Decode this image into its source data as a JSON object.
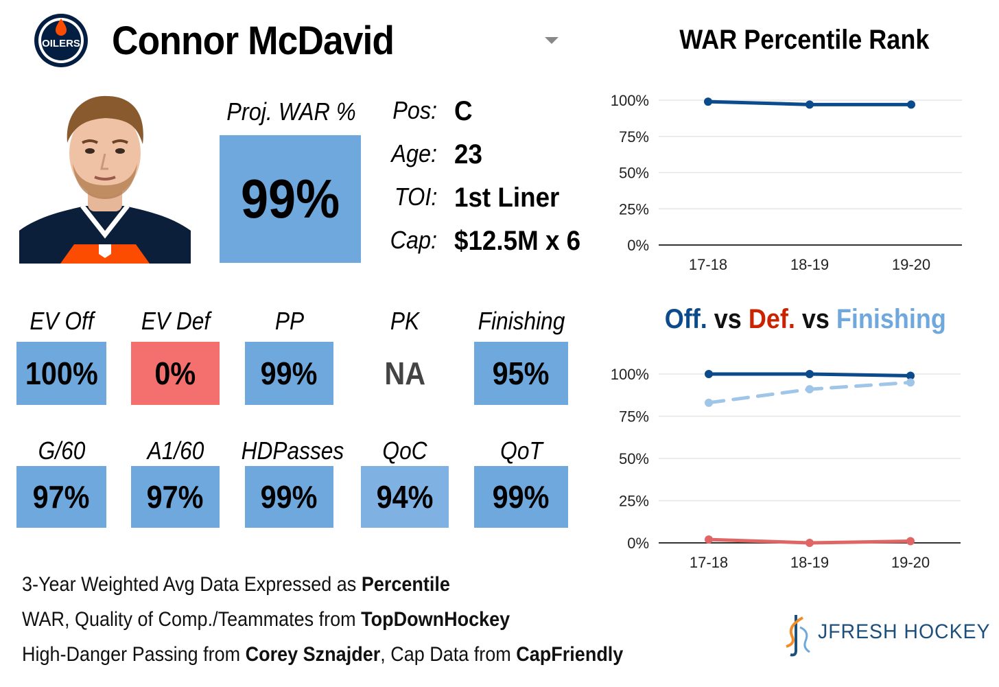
{
  "player": {
    "name": "Connor McDavid",
    "team_logo_text": "OILERS"
  },
  "projected": {
    "label": "Proj. WAR %",
    "value": "99%"
  },
  "info": [
    {
      "label": "Pos:",
      "value": "C"
    },
    {
      "label": "Age:",
      "value": "23"
    },
    {
      "label": "TOI:",
      "value": "1st Liner"
    },
    {
      "label": "Cap:",
      "value": "$12.5M x 6"
    }
  ],
  "stats_row1": [
    {
      "label": "EV Off",
      "value": "100%",
      "style": "blue"
    },
    {
      "label": "EV Def",
      "value": "0%",
      "style": "red"
    },
    {
      "label": "PP",
      "value": "99%",
      "style": "blue"
    },
    {
      "label": "PK",
      "value": "NA",
      "style": "none"
    },
    {
      "label": "Finishing",
      "value": "95%",
      "style": "blue"
    }
  ],
  "stats_row2": [
    {
      "label": "G/60",
      "value": "97%",
      "style": "blue"
    },
    {
      "label": "A1/60",
      "value": "97%",
      "style": "blue"
    },
    {
      "label": "HDPasses",
      "value": "99%",
      "style": "blue"
    },
    {
      "label": "QoC",
      "value": "94%",
      "style": "lite"
    },
    {
      "label": "QoT",
      "value": "99%",
      "style": "blue"
    }
  ],
  "colors": {
    "high": "#6fa8dc",
    "low": "#f4706e",
    "offense": "#0b4a8b",
    "defense": "#e06666",
    "finishing": "#9fc5e8"
  },
  "chart_data": [
    {
      "type": "line",
      "title": "WAR Percentile Rank",
      "categories": [
        "17-18",
        "18-19",
        "19-20"
      ],
      "yticks": [
        "0%",
        "25%",
        "50%",
        "75%",
        "100%"
      ],
      "ylim": [
        0,
        100
      ],
      "series": [
        {
          "values": [
            99,
            97,
            97
          ],
          "color": "#0b4a8b",
          "dash": false
        }
      ]
    },
    {
      "type": "line",
      "title_parts": [
        {
          "text": "Off.",
          "color": "#0b4a8b"
        },
        {
          "text": " vs ",
          "color": "#111111"
        },
        {
          "text": "Def.",
          "color": "#cc2200"
        },
        {
          "text": " vs ",
          "color": "#111111"
        },
        {
          "text": "Finishing",
          "color": "#6fa8dc"
        }
      ],
      "categories": [
        "17-18",
        "18-19",
        "19-20"
      ],
      "yticks": [
        "0%",
        "25%",
        "50%",
        "75%",
        "100%"
      ],
      "ylim": [
        0,
        100
      ],
      "series": [
        {
          "values": [
            100,
            100,
            99
          ],
          "color": "#0b4a8b",
          "dash": false
        },
        {
          "values": [
            83,
            91,
            95
          ],
          "color": "#9fc5e8",
          "dash": true
        },
        {
          "values": [
            2,
            0,
            1
          ],
          "color": "#e06666",
          "dash": false
        }
      ]
    }
  ],
  "footer": {
    "line1_pre": "3-Year Weighted Avg Data Expressed as ",
    "line1_bold": "Percentile",
    "line2_pre": "WAR, Quality of Comp./Teammates from ",
    "line2_bold": "TopDownHockey",
    "line3_pre": "High-Danger Passing from ",
    "line3_bold1": "Corey Sznajder",
    "line3_mid": ", Cap Data from ",
    "line3_bold2": "CapFriendly"
  },
  "brand": {
    "text": "JFRESH HOCKEY"
  }
}
